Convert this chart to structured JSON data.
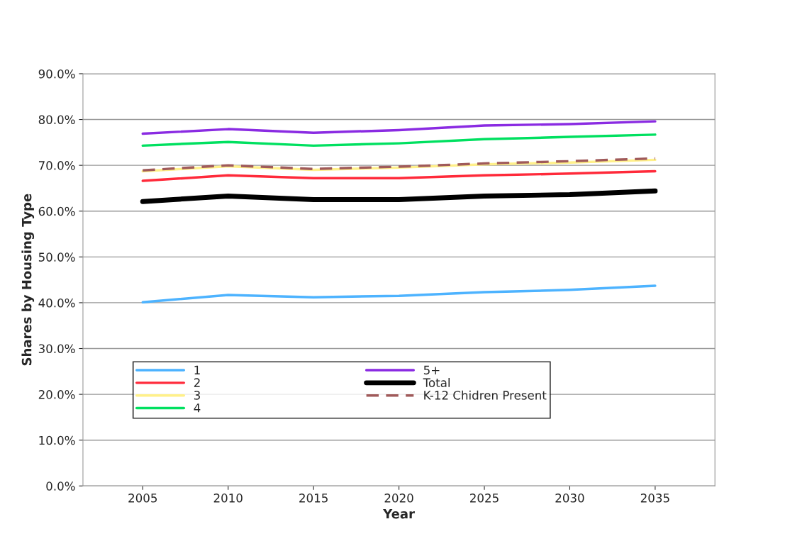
{
  "chart_data": {
    "type": "line",
    "xlabel": "Year",
    "ylabel": "Shares by Housing Type",
    "categories": [
      "2005",
      "2010",
      "2015",
      "2020",
      "2025",
      "2030",
      "2035"
    ],
    "ylim": [
      0,
      90
    ],
    "yticks": [
      {
        "value": 0,
        "label": "0.0%"
      },
      {
        "value": 10,
        "label": "10.0%"
      },
      {
        "value": 20,
        "label": "20.0%"
      },
      {
        "value": 30,
        "label": "30.0%"
      },
      {
        "value": 40,
        "label": "40.0%"
      },
      {
        "value": 50,
        "label": "50.0%"
      },
      {
        "value": 60,
        "label": "60.0%"
      },
      {
        "value": 70,
        "label": "70.0%"
      },
      {
        "value": 80,
        "label": "80.0%"
      },
      {
        "value": 90,
        "label": "90.0%"
      }
    ],
    "grid": "y",
    "legend": "bottom left",
    "marker": "none",
    "series": [
      {
        "name": "1",
        "color": "#4db3ff",
        "values": [
          40.1,
          41.7,
          41.2,
          41.5,
          42.3,
          42.8,
          43.7
        ]
      },
      {
        "name": "2",
        "color": "#ff2a3a",
        "values": [
          66.6,
          67.8,
          67.2,
          67.2,
          67.8,
          68.2,
          68.7
        ]
      },
      {
        "name": "3",
        "color": "#fff08a",
        "values": [
          68.7,
          69.8,
          69.0,
          69.5,
          70.2,
          70.6,
          71.2
        ]
      },
      {
        "name": "4",
        "color": "#00e060",
        "values": [
          74.3,
          75.1,
          74.3,
          74.8,
          75.7,
          76.2,
          76.7
        ]
      },
      {
        "name": "5+",
        "color": "#8a2be2",
        "values": [
          76.9,
          77.9,
          77.1,
          77.7,
          78.7,
          79.0,
          79.6
        ]
      },
      {
        "name": "Total",
        "color": "#000000",
        "values": [
          62.1,
          63.3,
          62.5,
          62.5,
          63.3,
          63.6,
          64.4
        ]
      },
      {
        "name": "K-12 Chidren Present",
        "color": "#a05a5a",
        "line_style": "dashed",
        "values": [
          68.9,
          70.0,
          69.2,
          69.7,
          70.4,
          70.9,
          71.5
        ]
      }
    ]
  }
}
